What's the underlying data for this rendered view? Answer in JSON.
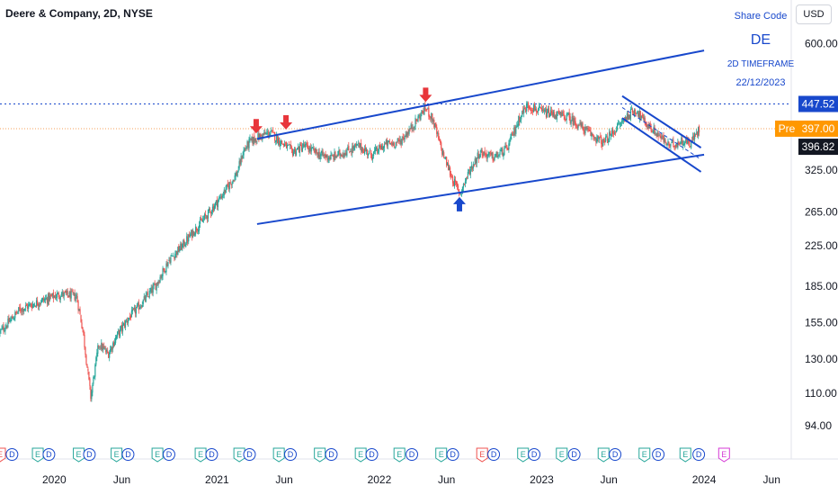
{
  "header": {
    "title": "Deere & Company, 2D, NYSE",
    "currency": "USD"
  },
  "info_box": {
    "label": "Share Code",
    "symbol": "DE",
    "timeframe": "2D TIMEFRAME",
    "date": "22/12/2023"
  },
  "colors": {
    "up": "#26a69a",
    "down": "#ef5350",
    "trendline": "#1848cc",
    "arrow_down": "#e8363b",
    "arrow_up": "#1848cc",
    "high_line": "#1848cc",
    "pre_line": "#f5a05a",
    "last_tag": "#131722",
    "high_tag": "#1848cc",
    "pre_tag": "#ff9800",
    "dividend": "#1848cc",
    "earnings_up": "#26a69a",
    "earnings_down": "#ef5350",
    "earnings_future": "#d63bd6"
  },
  "price_tags": {
    "high": "447.52",
    "pre_label": "Pre",
    "pre": "397.00",
    "last": "396.82"
  },
  "chart_data": {
    "type": "candlestick",
    "y_scale": "log",
    "ylim": [
      92,
      650
    ],
    "y_ticks": [
      "600.00",
      "447.52",
      "397.00",
      "396.82",
      "325.00",
      "265.00",
      "225.00",
      "185.00",
      "155.00",
      "130.00",
      "110.00",
      "94.00"
    ],
    "y_tick_values": [
      600,
      325,
      265,
      225,
      185,
      155,
      130,
      110,
      94
    ],
    "x_range": [
      "2019-09-01",
      "2024-07-15"
    ],
    "x_ticks": [
      {
        "label": "2020",
        "date": "2020-01-01"
      },
      {
        "label": "Jun",
        "date": "2020-06-01"
      },
      {
        "label": "2021",
        "date": "2021-01-01"
      },
      {
        "label": "Jun",
        "date": "2021-06-01"
      },
      {
        "label": "2022",
        "date": "2022-01-01"
      },
      {
        "label": "Jun",
        "date": "2022-06-01"
      },
      {
        "label": "2023",
        "date": "2023-01-01"
      },
      {
        "label": "Jun",
        "date": "2023-06-01"
      },
      {
        "label": "2024",
        "date": "2024-01-01"
      },
      {
        "label": "Jun",
        "date": "2024-06-01"
      }
    ],
    "price_path": [
      [
        "2019-09-01",
        148
      ],
      [
        "2019-10-15",
        165
      ],
      [
        "2019-12-01",
        172
      ],
      [
        "2020-01-15",
        178
      ],
      [
        "2020-02-20",
        176
      ],
      [
        "2020-03-05",
        150
      ],
      [
        "2020-03-23",
        108
      ],
      [
        "2020-04-10",
        140
      ],
      [
        "2020-05-01",
        133
      ],
      [
        "2020-05-20",
        145
      ],
      [
        "2020-06-15",
        158
      ],
      [
        "2020-07-15",
        170
      ],
      [
        "2020-08-15",
        185
      ],
      [
        "2020-09-15",
        210
      ],
      [
        "2020-10-15",
        225
      ],
      [
        "2020-11-15",
        245
      ],
      [
        "2020-12-15",
        265
      ],
      [
        "2021-01-15",
        290
      ],
      [
        "2021-02-15",
        320
      ],
      [
        "2021-03-01",
        355
      ],
      [
        "2021-03-15",
        372
      ],
      [
        "2021-04-01",
        380
      ],
      [
        "2021-05-01",
        390
      ],
      [
        "2021-05-20",
        375
      ],
      [
        "2021-06-20",
        355
      ],
      [
        "2021-07-15",
        365
      ],
      [
        "2021-08-20",
        350
      ],
      [
        "2021-09-15",
        345
      ],
      [
        "2021-10-15",
        355
      ],
      [
        "2021-11-15",
        365
      ],
      [
        "2021-12-15",
        350
      ],
      [
        "2022-01-15",
        368
      ],
      [
        "2022-02-15",
        372
      ],
      [
        "2022-03-15",
        400
      ],
      [
        "2022-04-15",
        440
      ],
      [
        "2022-05-01",
        415
      ],
      [
        "2022-05-20",
        360
      ],
      [
        "2022-06-15",
        310
      ],
      [
        "2022-07-01",
        290
      ],
      [
        "2022-07-20",
        320
      ],
      [
        "2022-08-15",
        355
      ],
      [
        "2022-09-15",
        345
      ],
      [
        "2022-10-15",
        360
      ],
      [
        "2022-11-15",
        425
      ],
      [
        "2022-12-01",
        445
      ],
      [
        "2023-01-01",
        430
      ],
      [
        "2023-02-01",
        425
      ],
      [
        "2023-03-01",
        420
      ],
      [
        "2023-03-25",
        405
      ],
      [
        "2023-04-15",
        390
      ],
      [
        "2023-05-20",
        370
      ],
      [
        "2023-06-20",
        400
      ],
      [
        "2023-07-15",
        425
      ],
      [
        "2023-08-01",
        435
      ],
      [
        "2023-08-20",
        410
      ],
      [
        "2023-09-20",
        385
      ],
      [
        "2023-10-15",
        365
      ],
      [
        "2023-11-15",
        375
      ],
      [
        "2023-12-01",
        370
      ],
      [
        "2023-12-22",
        396.82
      ]
    ],
    "trendlines": [
      {
        "name": "upper-channel",
        "points": [
          [
            "2021-04-01",
            378
          ],
          [
            "2024-01-01",
            580
          ]
        ]
      },
      {
        "name": "lower-channel",
        "points": [
          [
            "2021-04-01",
            250
          ],
          [
            "2024-01-01",
            350
          ]
        ]
      },
      {
        "name": "falling-channel-top",
        "points": [
          [
            "2023-07-01",
            465
          ],
          [
            "2023-12-25",
            362
          ]
        ]
      },
      {
        "name": "falling-channel-bottom",
        "points": [
          [
            "2023-07-01",
            418
          ],
          [
            "2023-12-25",
            322
          ]
        ]
      },
      {
        "name": "falling-channel-mid",
        "dashed": true,
        "points": [
          [
            "2023-07-01",
            440
          ],
          [
            "2023-12-25",
            342
          ]
        ]
      }
    ],
    "annotations": [
      {
        "name": "top-arrow-1",
        "direction": "down",
        "date": "2021-03-30",
        "price": 378
      },
      {
        "name": "top-arrow-2",
        "direction": "down",
        "date": "2021-06-05",
        "price": 385
      },
      {
        "name": "top-arrow-3",
        "direction": "down",
        "date": "2022-04-15",
        "price": 440
      },
      {
        "name": "bottom-arrow",
        "direction": "up",
        "date": "2022-06-30",
        "price": 290
      }
    ],
    "event_markers": [
      {
        "type": "E",
        "date": "2019-09-01",
        "kind": "down"
      },
      {
        "type": "D",
        "date": "2019-09-28",
        "kind": "dividend"
      },
      {
        "type": "E",
        "date": "2019-11-25",
        "kind": "up"
      },
      {
        "type": "D",
        "date": "2019-12-20",
        "kind": "dividend"
      },
      {
        "type": "E",
        "date": "2020-02-25",
        "kind": "up"
      },
      {
        "type": "D",
        "date": "2020-03-20",
        "kind": "dividend"
      },
      {
        "type": "E",
        "date": "2020-05-20",
        "kind": "up"
      },
      {
        "type": "D",
        "date": "2020-06-15",
        "kind": "dividend"
      },
      {
        "type": "E",
        "date": "2020-08-20",
        "kind": "up"
      },
      {
        "type": "D",
        "date": "2020-09-15",
        "kind": "dividend"
      },
      {
        "type": "E",
        "date": "2020-11-25",
        "kind": "up"
      },
      {
        "type": "D",
        "date": "2020-12-20",
        "kind": "dividend"
      },
      {
        "type": "E",
        "date": "2021-02-20",
        "kind": "up"
      },
      {
        "type": "D",
        "date": "2021-03-15",
        "kind": "dividend"
      },
      {
        "type": "E",
        "date": "2021-05-20",
        "kind": "up"
      },
      {
        "type": "D",
        "date": "2021-06-15",
        "kind": "dividend"
      },
      {
        "type": "E",
        "date": "2021-08-20",
        "kind": "up"
      },
      {
        "type": "D",
        "date": "2021-09-15",
        "kind": "dividend"
      },
      {
        "type": "E",
        "date": "2021-11-20",
        "kind": "up"
      },
      {
        "type": "D",
        "date": "2021-12-15",
        "kind": "dividend"
      },
      {
        "type": "E",
        "date": "2022-02-15",
        "kind": "up"
      },
      {
        "type": "D",
        "date": "2022-03-15",
        "kind": "dividend"
      },
      {
        "type": "E",
        "date": "2022-05-20",
        "kind": "up"
      },
      {
        "type": "D",
        "date": "2022-06-15",
        "kind": "dividend"
      },
      {
        "type": "E",
        "date": "2022-08-20",
        "kind": "down"
      },
      {
        "type": "D",
        "date": "2022-09-15",
        "kind": "dividend"
      },
      {
        "type": "E",
        "date": "2022-11-20",
        "kind": "up"
      },
      {
        "type": "D",
        "date": "2022-12-15",
        "kind": "dividend"
      },
      {
        "type": "E",
        "date": "2023-02-15",
        "kind": "up"
      },
      {
        "type": "D",
        "date": "2023-03-15",
        "kind": "dividend"
      },
      {
        "type": "E",
        "date": "2023-05-20",
        "kind": "up"
      },
      {
        "type": "D",
        "date": "2023-06-15",
        "kind": "dividend"
      },
      {
        "type": "E",
        "date": "2023-08-20",
        "kind": "up"
      },
      {
        "type": "D",
        "date": "2023-09-20",
        "kind": "dividend"
      },
      {
        "type": "E",
        "date": "2023-11-20",
        "kind": "up"
      },
      {
        "type": "D",
        "date": "2023-12-20",
        "kind": "dividend"
      },
      {
        "type": "E",
        "date": "2024-02-15",
        "kind": "future"
      }
    ]
  }
}
